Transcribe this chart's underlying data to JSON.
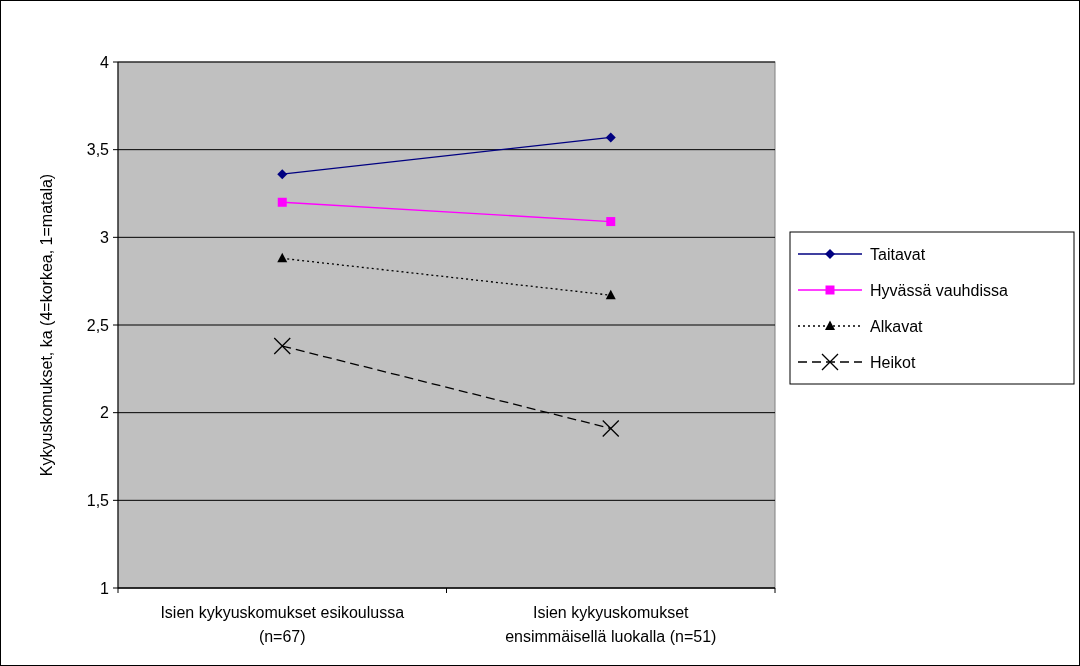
{
  "chart_data": {
    "type": "line",
    "ylabel": "Kykyuskomukset, ka (4=korkea, 1=matala)",
    "categories": [
      "Isien kykyuskomukset esikoulussa (n=67)",
      "Isien kykyuskomukset ensimmäisellä luokalla (n=51)"
    ],
    "series": [
      {
        "name": "Taitavat",
        "color": "#000080",
        "values": [
          3.36,
          3.57
        ],
        "marker": "diamond",
        "line_style": "solid"
      },
      {
        "name": "Hyvässä vauhdissa",
        "color": "#ff00ff",
        "values": [
          3.2,
          3.09
        ],
        "marker": "square",
        "line_style": "solid"
      },
      {
        "name": "Alkavat",
        "color": "#000000",
        "values": [
          2.88,
          2.67
        ],
        "marker": "triangle",
        "line_style": "dotted"
      },
      {
        "name": "Heikot",
        "color": "#000000",
        "values": [
          2.38,
          1.91
        ],
        "marker": "cross",
        "line_style": "dashed"
      }
    ],
    "ylim": [
      1,
      4
    ],
    "yticks": [
      1,
      {
        "value": 1.5,
        "label": "1,5"
      },
      2,
      {
        "value": 2.5,
        "label": "2,5"
      },
      3,
      {
        "value": 3.5,
        "label": "3,5"
      },
      4
    ],
    "grid": "y",
    "legend": "right"
  }
}
